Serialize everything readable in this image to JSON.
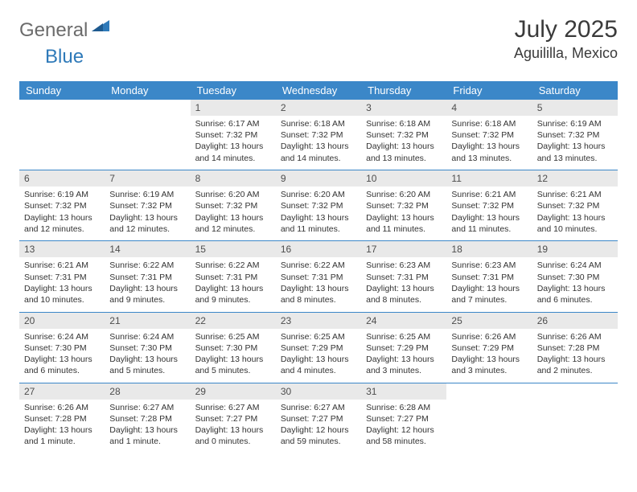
{
  "logo": {
    "text1": "General",
    "text2": "Blue"
  },
  "header": {
    "month_year": "July 2025",
    "location": "Aguililla, Mexico"
  },
  "colors": {
    "header_bg": "#3b87c8",
    "header_text": "#ffffff",
    "daynum_bg": "#e9e9e9",
    "text": "#333333",
    "logo_gray": "#6b6b6b",
    "logo_blue": "#2f7ab9"
  },
  "day_names": [
    "Sunday",
    "Monday",
    "Tuesday",
    "Wednesday",
    "Thursday",
    "Friday",
    "Saturday"
  ],
  "weeks": [
    [
      null,
      null,
      {
        "n": "1",
        "sr": "6:17 AM",
        "ss": "7:32 PM",
        "dl": "13 hours and 14 minutes."
      },
      {
        "n": "2",
        "sr": "6:18 AM",
        "ss": "7:32 PM",
        "dl": "13 hours and 14 minutes."
      },
      {
        "n": "3",
        "sr": "6:18 AM",
        "ss": "7:32 PM",
        "dl": "13 hours and 13 minutes."
      },
      {
        "n": "4",
        "sr": "6:18 AM",
        "ss": "7:32 PM",
        "dl": "13 hours and 13 minutes."
      },
      {
        "n": "5",
        "sr": "6:19 AM",
        "ss": "7:32 PM",
        "dl": "13 hours and 13 minutes."
      }
    ],
    [
      {
        "n": "6",
        "sr": "6:19 AM",
        "ss": "7:32 PM",
        "dl": "13 hours and 12 minutes."
      },
      {
        "n": "7",
        "sr": "6:19 AM",
        "ss": "7:32 PM",
        "dl": "13 hours and 12 minutes."
      },
      {
        "n": "8",
        "sr": "6:20 AM",
        "ss": "7:32 PM",
        "dl": "13 hours and 12 minutes."
      },
      {
        "n": "9",
        "sr": "6:20 AM",
        "ss": "7:32 PM",
        "dl": "13 hours and 11 minutes."
      },
      {
        "n": "10",
        "sr": "6:20 AM",
        "ss": "7:32 PM",
        "dl": "13 hours and 11 minutes."
      },
      {
        "n": "11",
        "sr": "6:21 AM",
        "ss": "7:32 PM",
        "dl": "13 hours and 11 minutes."
      },
      {
        "n": "12",
        "sr": "6:21 AM",
        "ss": "7:32 PM",
        "dl": "13 hours and 10 minutes."
      }
    ],
    [
      {
        "n": "13",
        "sr": "6:21 AM",
        "ss": "7:31 PM",
        "dl": "13 hours and 10 minutes."
      },
      {
        "n": "14",
        "sr": "6:22 AM",
        "ss": "7:31 PM",
        "dl": "13 hours and 9 minutes."
      },
      {
        "n": "15",
        "sr": "6:22 AM",
        "ss": "7:31 PM",
        "dl": "13 hours and 9 minutes."
      },
      {
        "n": "16",
        "sr": "6:22 AM",
        "ss": "7:31 PM",
        "dl": "13 hours and 8 minutes."
      },
      {
        "n": "17",
        "sr": "6:23 AM",
        "ss": "7:31 PM",
        "dl": "13 hours and 8 minutes."
      },
      {
        "n": "18",
        "sr": "6:23 AM",
        "ss": "7:31 PM",
        "dl": "13 hours and 7 minutes."
      },
      {
        "n": "19",
        "sr": "6:24 AM",
        "ss": "7:30 PM",
        "dl": "13 hours and 6 minutes."
      }
    ],
    [
      {
        "n": "20",
        "sr": "6:24 AM",
        "ss": "7:30 PM",
        "dl": "13 hours and 6 minutes."
      },
      {
        "n": "21",
        "sr": "6:24 AM",
        "ss": "7:30 PM",
        "dl": "13 hours and 5 minutes."
      },
      {
        "n": "22",
        "sr": "6:25 AM",
        "ss": "7:30 PM",
        "dl": "13 hours and 5 minutes."
      },
      {
        "n": "23",
        "sr": "6:25 AM",
        "ss": "7:29 PM",
        "dl": "13 hours and 4 minutes."
      },
      {
        "n": "24",
        "sr": "6:25 AM",
        "ss": "7:29 PM",
        "dl": "13 hours and 3 minutes."
      },
      {
        "n": "25",
        "sr": "6:26 AM",
        "ss": "7:29 PM",
        "dl": "13 hours and 3 minutes."
      },
      {
        "n": "26",
        "sr": "6:26 AM",
        "ss": "7:28 PM",
        "dl": "13 hours and 2 minutes."
      }
    ],
    [
      {
        "n": "27",
        "sr": "6:26 AM",
        "ss": "7:28 PM",
        "dl": "13 hours and 1 minute."
      },
      {
        "n": "28",
        "sr": "6:27 AM",
        "ss": "7:28 PM",
        "dl": "13 hours and 1 minute."
      },
      {
        "n": "29",
        "sr": "6:27 AM",
        "ss": "7:27 PM",
        "dl": "13 hours and 0 minutes."
      },
      {
        "n": "30",
        "sr": "6:27 AM",
        "ss": "7:27 PM",
        "dl": "12 hours and 59 minutes."
      },
      {
        "n": "31",
        "sr": "6:28 AM",
        "ss": "7:27 PM",
        "dl": "12 hours and 58 minutes."
      },
      null,
      null
    ]
  ],
  "labels": {
    "sunrise": "Sunrise:",
    "sunset": "Sunset:",
    "daylight": "Daylight:"
  }
}
